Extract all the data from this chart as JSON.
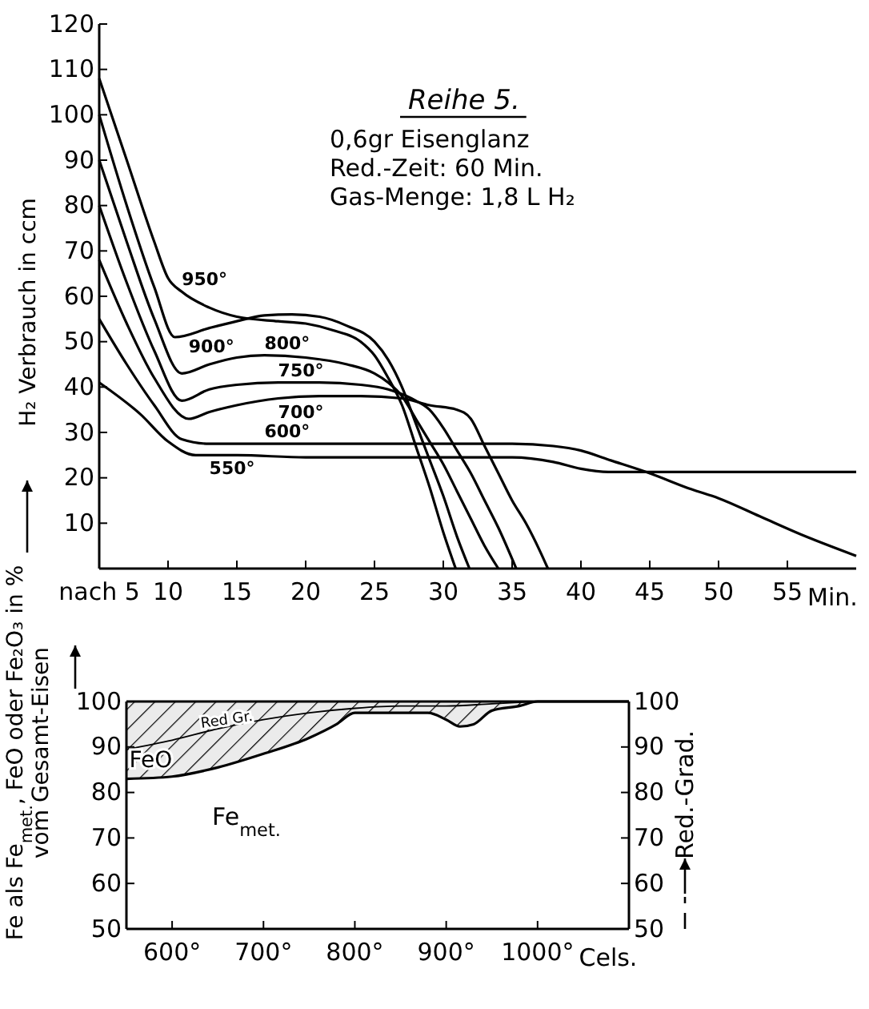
{
  "chart_data": [
    {
      "type": "line",
      "title": "Reihe 5.",
      "annotations": [
        "0,6gr Eisenglanz",
        "Red.-Zeit: 60 Min.",
        "Gas-Menge: 1,8 L H₂"
      ],
      "xlabel": "Min.",
      "ylabel": "H₂ Verbrauch in ccm",
      "xlim": [
        5,
        60
      ],
      "ylim": [
        0,
        120
      ],
      "xticks": [
        {
          "value": 5,
          "label": "nach 5"
        },
        10,
        15,
        20,
        25,
        30,
        35,
        40,
        45,
        50,
        55
      ],
      "yticks": [
        10,
        20,
        30,
        40,
        50,
        60,
        70,
        80,
        90,
        100,
        110,
        120
      ],
      "series": [
        {
          "name": "950°",
          "color": "#000000",
          "x": [
            5,
            7,
            9,
            10,
            11,
            13,
            15,
            18,
            20,
            22,
            24,
            25,
            26,
            27,
            28,
            29,
            30,
            30.9
          ],
          "values": [
            108,
            90,
            72,
            64,
            61,
            57.5,
            55.5,
            54.5,
            54,
            52.5,
            50,
            47,
            42,
            36,
            27,
            18,
            8,
            0
          ]
        },
        {
          "name": "900°",
          "color": "#000000",
          "x": [
            5,
            7,
            9,
            10.5,
            13,
            15,
            17,
            19,
            21,
            23,
            25,
            26,
            27,
            28,
            29,
            30,
            31,
            31.9
          ],
          "values": [
            100,
            80,
            62,
            51,
            53,
            54.5,
            55.8,
            56,
            55.5,
            53.5,
            50,
            46,
            40,
            32,
            24,
            16,
            7,
            0
          ]
        },
        {
          "name": "800°",
          "color": "#000000",
          "x": [
            5,
            7,
            9,
            11,
            13,
            15,
            17,
            20,
            23,
            25,
            26,
            27,
            28,
            29,
            30,
            31,
            32,
            33,
            34
          ],
          "values": [
            90,
            72,
            55,
            43,
            45,
            46.5,
            47,
            46.5,
            45,
            43,
            41,
            38,
            33,
            28,
            23,
            17,
            11,
            5,
            0
          ]
        },
        {
          "name": "750°",
          "color": "#000000",
          "x": [
            5,
            7,
            9,
            11,
            13,
            15,
            18,
            21,
            24,
            26,
            28,
            29,
            30,
            31,
            32,
            33,
            34,
            35.3
          ],
          "values": [
            80,
            63,
            48,
            37,
            39.5,
            40.5,
            41,
            41,
            40.5,
            39.5,
            37,
            35,
            31,
            26,
            21,
            15,
            9,
            0
          ]
        },
        {
          "name": "700°",
          "color": "#000000",
          "x": [
            5,
            7,
            9,
            11.5,
            13,
            15,
            18,
            21,
            24,
            27,
            29,
            31,
            32,
            33,
            34,
            35,
            36,
            37,
            37.6
          ],
          "values": [
            68,
            54,
            42,
            33,
            34.5,
            36,
            37.5,
            38,
            38,
            37.5,
            36,
            35,
            33,
            27,
            21,
            15,
            10,
            4,
            0
          ]
        },
        {
          "name": "600°",
          "color": "#000000",
          "x": [
            5,
            7,
            9,
            11,
            13,
            15,
            20,
            25,
            30,
            35,
            38,
            40,
            42,
            45,
            48,
            50,
            53,
            56,
            60
          ],
          "values": [
            55,
            45,
            36,
            28.5,
            27.5,
            27.5,
            27.5,
            27.5,
            27.5,
            27.5,
            27,
            26,
            24,
            21,
            17.5,
            15.5,
            11.5,
            7.5,
            2.8
          ]
        },
        {
          "name": "550°",
          "color": "#000000",
          "x": [
            5,
            8,
            10,
            12,
            15,
            20,
            25,
            30,
            35,
            38,
            40,
            42,
            45,
            50,
            55,
            60
          ],
          "values": [
            41,
            34,
            28,
            25,
            25,
            24.5,
            24.5,
            24.5,
            24.5,
            23.5,
            22,
            21.3,
            21.3,
            21.3,
            21.3,
            21.3
          ]
        }
      ]
    },
    {
      "type": "line",
      "xlabel": "Cels.",
      "ylabel": "Fe als Fe$_{met.}$, FeO oder Fe₂O₃ in % vom Gesamt-Eisen",
      "y2label": "Red.-Grad.",
      "xlim": [
        550,
        1100
      ],
      "ylim": [
        50,
        100
      ],
      "y2lim": [
        50,
        100
      ],
      "xticks": [
        {
          "value": 600,
          "label": "600°"
        },
        {
          "value": 700,
          "label": "700°"
        },
        {
          "value": 800,
          "label": "800°"
        },
        {
          "value": 900,
          "label": "900°"
        },
        {
          "value": 1000,
          "label": "1000°"
        }
      ],
      "yticks": [
        50,
        60,
        70,
        80,
        90,
        100
      ],
      "y2ticks": [
        50,
        60,
        70,
        80,
        90,
        100
      ],
      "annotations": [
        {
          "text": "FeO",
          "x": 553,
          "y": 85.5
        }
      ],
      "series": [
        {
          "name": "Fe$_{met.}$",
          "color": "#000000",
          "x": [
            550,
            600,
            650,
            700,
            750,
            780,
            800,
            850,
            880,
            900,
            915,
            930,
            950,
            980,
            1000,
            1100
          ],
          "values": [
            83,
            83.5,
            85.5,
            88.5,
            92,
            95,
            97.5,
            97.5,
            97.5,
            96,
            94.5,
            95,
            98,
            99,
            100,
            100
          ],
          "lower": [
            83,
            83.5,
            85.5,
            88.5,
            92,
            95,
            97.5,
            97.5,
            97.5,
            96,
            94.5,
            95,
            98,
            99,
            100,
            100
          ],
          "upper": [
            100,
            100,
            100,
            100,
            100,
            100,
            100,
            100,
            100,
            100,
            100,
            100,
            100,
            100,
            100,
            100
          ]
        },
        {
          "name": "Red Gr.",
          "axis": "y2",
          "color": "#000000",
          "x": [
            550,
            600,
            650,
            700,
            750,
            800,
            850,
            900,
            950,
            1000
          ],
          "values": [
            89.5,
            91.5,
            94,
            96,
            97.5,
            98.5,
            99,
            99,
            99.5,
            100
          ]
        }
      ]
    }
  ]
}
